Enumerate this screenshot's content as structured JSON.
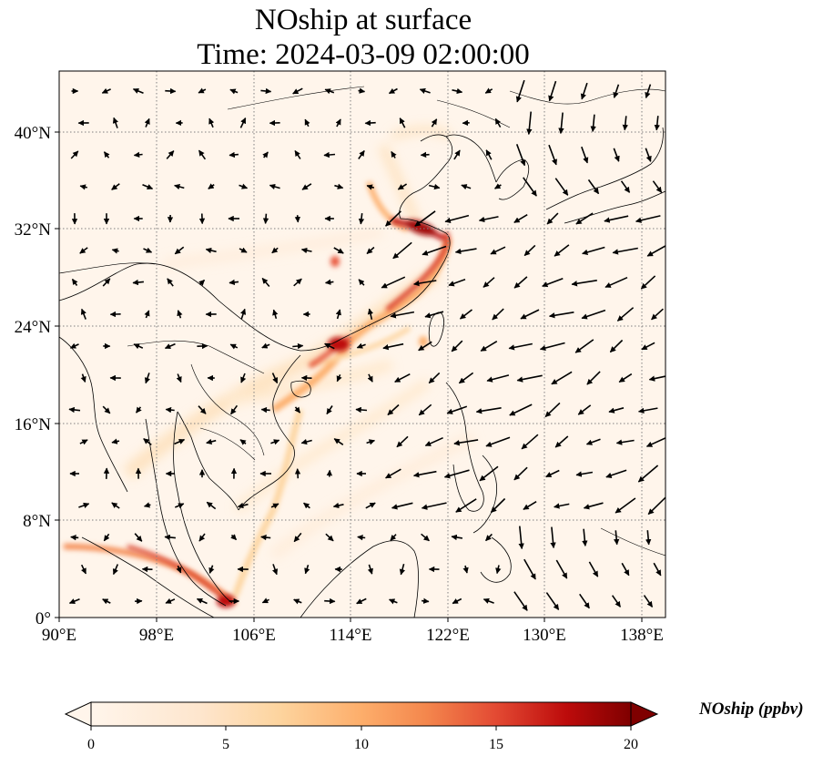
{
  "title": {
    "line1": "NOship at surface",
    "line2": "Time: 2024-03-09 02:00:00"
  },
  "map": {
    "lon_range": [
      90,
      140
    ],
    "lat_range": [
      0,
      45
    ],
    "lon_ticks": [
      "90°E",
      "98°E",
      "106°E",
      "114°E",
      "122°E",
      "130°E",
      "138°E"
    ],
    "lat_ticks": [
      "0°",
      "8°N",
      "16°N",
      "24°N",
      "32°N",
      "40°N"
    ],
    "gridlines": "dotted",
    "variable": "NOship",
    "vectors": "surface wind"
  },
  "colorbar": {
    "label": "NOship (ppbv)",
    "ticks": [
      "0",
      "5",
      "10",
      "15",
      "20"
    ],
    "range": [
      0,
      20
    ],
    "extend": "both",
    "cmap_colors": [
      "#fff5eb",
      "#fdd49e",
      "#fdae6b",
      "#f16913",
      "#d7301f",
      "#7f0000"
    ]
  }
}
